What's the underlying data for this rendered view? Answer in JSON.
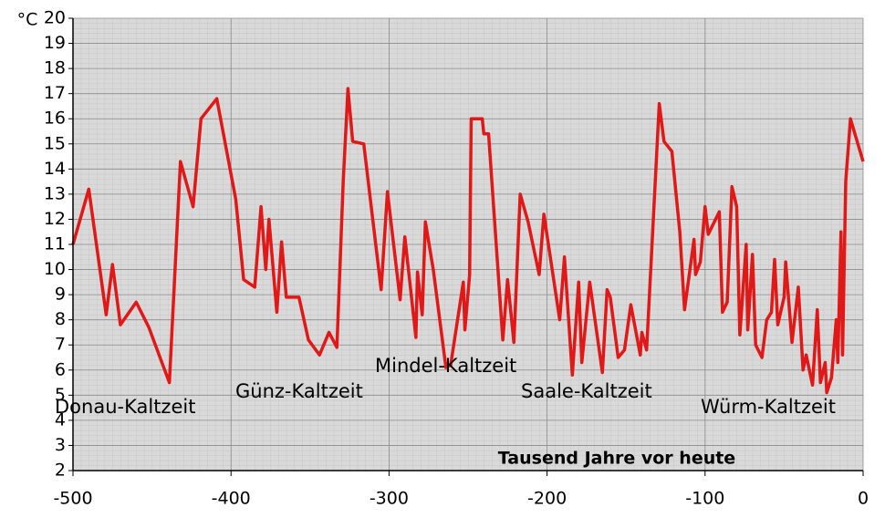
{
  "chart_data": {
    "type": "line",
    "y_unit": "°C",
    "x_label": "Tausend Jahre vor heute",
    "annotations": [
      "Donau-Kaltzeit",
      "Günz-Kaltzeit",
      "Mindel-Kaltzeit",
      "Saale-Kaltzeit",
      "Würm-Kaltzeit"
    ],
    "xlim": [
      -500,
      0
    ],
    "xticks": [
      -500,
      -400,
      -300,
      -200,
      -100,
      0
    ],
    "ylim": [
      2,
      20
    ],
    "yticks": [
      2,
      3,
      4,
      5,
      6,
      7,
      8,
      9,
      10,
      11,
      12,
      13,
      14,
      15,
      16,
      17,
      18,
      19,
      20
    ],
    "grid": true,
    "series": [
      {
        "color": "#e01818",
        "x": [
          -500,
          -490,
          -479,
          -475,
          -470,
          -460,
          -452,
          -439,
          -432,
          -424,
          -419,
          -409,
          -397,
          -392,
          -385,
          -381,
          -378,
          -376,
          -371,
          -368,
          -365,
          -357,
          -351,
          -344,
          -338,
          -333,
          -329,
          -326,
          -323,
          -316,
          -305,
          -301,
          -293,
          -290,
          -283,
          -282,
          -279,
          -277,
          -272,
          -264,
          -261,
          -253,
          -252,
          -249,
          -248,
          -241,
          -240,
          -237,
          -228,
          -225,
          -221,
          -217,
          -212,
          -205,
          -202,
          -192,
          -189,
          -184,
          -180,
          -178,
          -173,
          -165,
          -162,
          -160,
          -155,
          -151,
          -147,
          -141,
          -140,
          -137,
          -129,
          -126,
          -121,
          -116,
          -113,
          -107,
          -106,
          -103,
          -100,
          -98,
          -91,
          -89,
          -86,
          -83,
          -80,
          -78,
          -74,
          -73,
          -70,
          -68,
          -64,
          -61,
          -58,
          -56,
          -54,
          -50,
          -49,
          -45,
          -41,
          -38,
          -36,
          -32,
          -29,
          -27,
          -24,
          -23,
          -20,
          -17,
          -16,
          -14,
          -13,
          -11,
          -8,
          0
        ],
        "values": [
          11.0,
          13.2,
          8.2,
          10.2,
          7.8,
          8.7,
          7.7,
          5.5,
          14.3,
          12.5,
          16.0,
          16.8,
          12.8,
          9.6,
          9.3,
          12.5,
          10.0,
          12.0,
          8.3,
          11.1,
          8.9,
          8.9,
          7.2,
          6.6,
          7.5,
          6.9,
          13.5,
          17.2,
          15.1,
          15.0,
          9.2,
          13.1,
          8.8,
          11.3,
          7.3,
          9.9,
          8.2,
          11.9,
          10.0,
          6.1,
          6.2,
          9.5,
          7.6,
          9.8,
          16.0,
          16.0,
          15.4,
          15.4,
          7.2,
          9.6,
          7.1,
          13.0,
          11.9,
          9.8,
          12.2,
          8.0,
          10.5,
          5.8,
          9.5,
          6.3,
          9.5,
          5.9,
          9.2,
          8.9,
          6.5,
          6.8,
          8.6,
          6.6,
          7.5,
          6.8,
          16.6,
          15.1,
          14.7,
          11.5,
          8.4,
          11.2,
          9.8,
          10.3,
          12.5,
          11.4,
          12.3,
          8.3,
          8.7,
          13.3,
          12.5,
          7.4,
          11.0,
          7.6,
          10.6,
          7.0,
          6.5,
          8.0,
          8.3,
          10.4,
          7.8,
          8.9,
          10.3,
          7.1,
          9.3,
          6.0,
          6.6,
          5.4,
          8.4,
          5.5,
          6.3,
          5.1,
          5.7,
          8.0,
          6.3,
          11.5,
          6.6,
          13.5,
          16.0,
          14.3
        ]
      }
    ]
  }
}
